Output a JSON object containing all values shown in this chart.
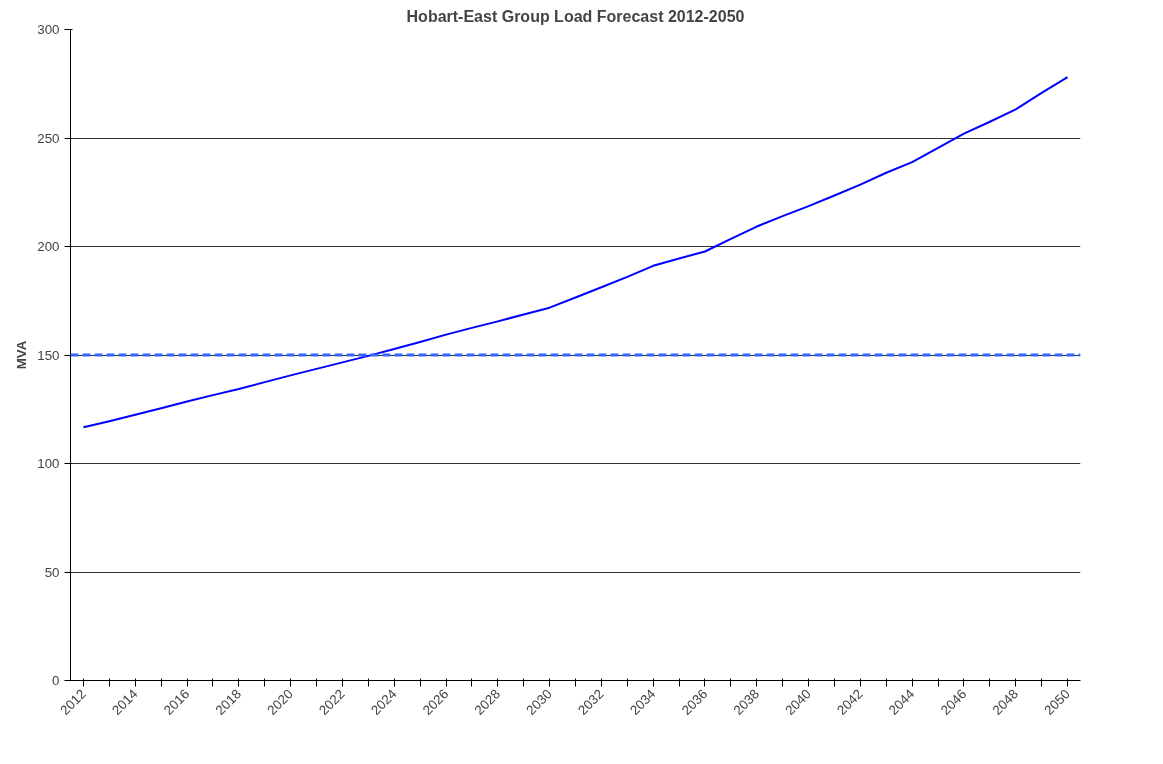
{
  "chart_data": {
    "type": "line",
    "title": "Hobart-East Group Load Forecast 2012-2050",
    "ylabel": "MVA",
    "categories": [
      "2012",
      null,
      "2014",
      null,
      "2016",
      null,
      "2018",
      null,
      "2020",
      null,
      "2022",
      null,
      "2024",
      null,
      "2026",
      null,
      "2028",
      null,
      "2030",
      null,
      "2032",
      null,
      "2034",
      null,
      "2036",
      null,
      "2038",
      null,
      "2040",
      null,
      "2042",
      null,
      "2044",
      null,
      "2046",
      null,
      "2048",
      null,
      "2050"
    ],
    "series": [
      {
        "color": "#0000ff",
        "values": [
          116.7,
          119.5,
          122.5,
          125.5,
          128.6,
          131.5,
          134.3,
          137.5,
          140.6,
          143.6,
          146.6,
          149.6,
          152.8,
          156,
          159.4,
          162.5,
          165.5,
          168.7,
          171.8,
          176.5,
          181.2,
          186,
          191.1,
          194.5,
          197.7,
          203.5,
          209.2,
          214,
          218.6,
          223.5,
          228.5,
          234,
          238.9,
          245.5,
          252,
          257.5,
          263.2,
          270.8,
          278.1
        ]
      }
    ],
    "ylim": [
      0,
      300
    ],
    "yticks": [
      0,
      50,
      100,
      150,
      200,
      250,
      300
    ],
    "grid": "y",
    "marker": "none",
    "line_style": "solid",
    "ref_lines": [
      {
        "axis": "y",
        "value": 150,
        "color": "#3366ff",
        "line_style": "dashed"
      }
    ]
  }
}
